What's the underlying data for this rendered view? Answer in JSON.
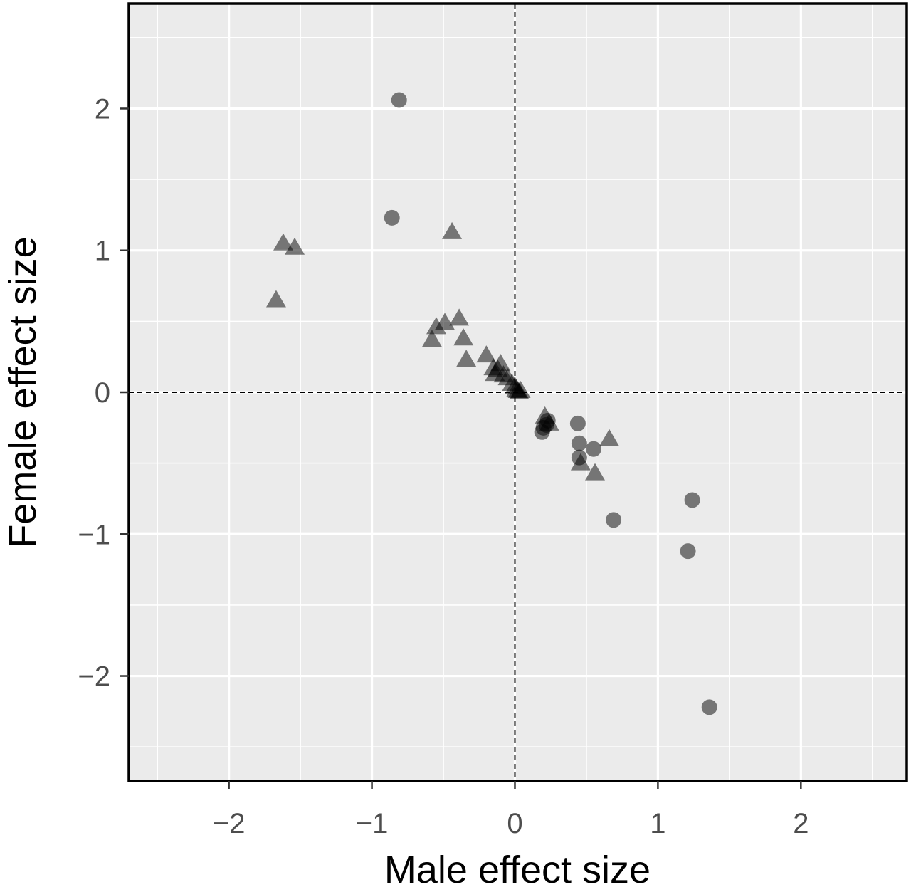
{
  "chart_data": {
    "type": "scatter",
    "title": "",
    "xlabel": "Male effect size",
    "ylabel": "Female effect size",
    "xlim": [
      -2.7,
      2.74
    ],
    "ylim": [
      -2.74,
      2.74
    ],
    "x_ticks": [
      -2,
      -1,
      0,
      1,
      2
    ],
    "y_ticks": [
      -2,
      -1,
      0,
      1,
      2
    ],
    "x_tick_labels": [
      "−2",
      "−1",
      "0",
      "1",
      "2"
    ],
    "y_tick_labels": [
      "−2",
      "−1",
      "0",
      "1",
      "2"
    ],
    "grid": true,
    "reference_lines": {
      "x": 0,
      "y": 0,
      "style": "dashed"
    },
    "colors": {
      "panel_background": "#ebebeb",
      "grid": "#ffffff",
      "marker": "#000000",
      "marker_alpha": 0.5
    },
    "series": [
      {
        "marker": "circle",
        "points": [
          {
            "x": -0.81,
            "y": 2.06
          },
          {
            "x": -0.86,
            "y": 1.23
          },
          {
            "x": 0.19,
            "y": -0.28
          },
          {
            "x": 0.2,
            "y": -0.25
          },
          {
            "x": 0.22,
            "y": -0.23
          },
          {
            "x": 0.23,
            "y": -0.2
          },
          {
            "x": 0.44,
            "y": -0.22
          },
          {
            "x": 0.45,
            "y": -0.36
          },
          {
            "x": 0.45,
            "y": -0.46
          },
          {
            "x": 0.55,
            "y": -0.4
          },
          {
            "x": 0.69,
            "y": -0.9
          },
          {
            "x": 1.24,
            "y": -0.76
          },
          {
            "x": 1.21,
            "y": -1.12
          },
          {
            "x": 1.36,
            "y": -2.22
          }
        ]
      },
      {
        "marker": "triangle",
        "points": [
          {
            "x": -1.62,
            "y": 1.04
          },
          {
            "x": -1.54,
            "y": 1.01
          },
          {
            "x": -1.67,
            "y": 0.64
          },
          {
            "x": -0.44,
            "y": 1.12
          },
          {
            "x": -0.55,
            "y": 0.45
          },
          {
            "x": -0.49,
            "y": 0.48
          },
          {
            "x": -0.39,
            "y": 0.51
          },
          {
            "x": -0.58,
            "y": 0.36
          },
          {
            "x": -0.36,
            "y": 0.37
          },
          {
            "x": -0.34,
            "y": 0.22
          },
          {
            "x": -0.2,
            "y": 0.25
          },
          {
            "x": -0.15,
            "y": 0.16
          },
          {
            "x": -0.12,
            "y": 0.15
          },
          {
            "x": -0.1,
            "y": 0.19
          },
          {
            "x": -0.14,
            "y": 0.12
          },
          {
            "x": -0.08,
            "y": 0.11
          },
          {
            "x": -0.05,
            "y": 0.09
          },
          {
            "x": -0.02,
            "y": 0.05
          },
          {
            "x": 0.0,
            "y": 0.03
          },
          {
            "x": 0.01,
            "y": 0.01
          },
          {
            "x": 0.02,
            "y": 0.0
          },
          {
            "x": 0.03,
            "y": -0.01
          },
          {
            "x": 0.04,
            "y": 0.0
          },
          {
            "x": 0.21,
            "y": -0.18
          },
          {
            "x": 0.24,
            "y": -0.23
          },
          {
            "x": 0.66,
            "y": -0.34
          },
          {
            "x": 0.46,
            "y": -0.51
          },
          {
            "x": 0.56,
            "y": -0.58
          }
        ]
      }
    ]
  }
}
